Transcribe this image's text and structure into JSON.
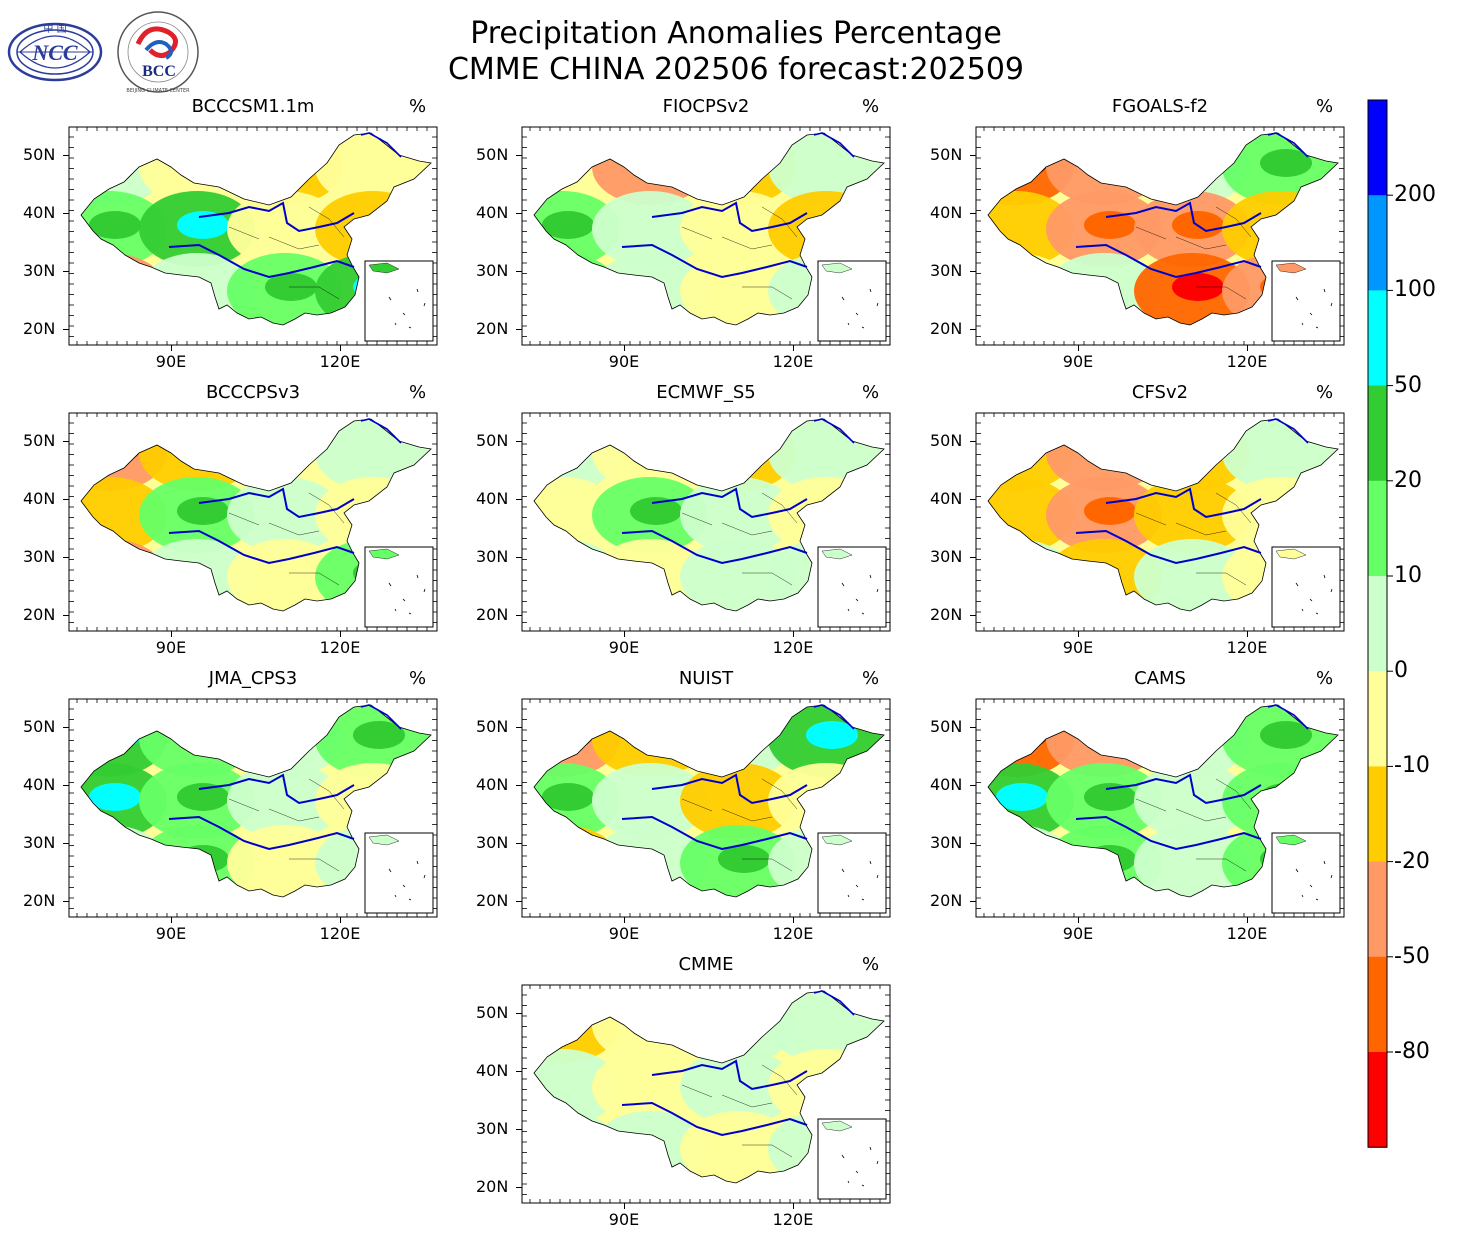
{
  "header": {
    "title_line1": "Precipitation Anomalies Percentage",
    "title_line2": "CMME CHINA 202506 forecast:202509",
    "logo_left_text": "NCC",
    "logo_left_top": "中 国",
    "logo_right_text": "BCC",
    "logo_right_ring": "BEIJING CLIMATE CENTER"
  },
  "unit": "%",
  "panels": [
    {
      "name": "BCCCSM1.1m",
      "pattern": [
        1,
        0,
        -1,
        0,
        2,
        3,
        0,
        -1,
        -2,
        1,
        2,
        3
      ]
    },
    {
      "name": "FIOCPSv2",
      "pattern": [
        0,
        -2,
        -1,
        1,
        2,
        1,
        0,
        -1,
        2,
        1,
        0,
        1
      ]
    },
    {
      "name": "FGOALS-f2",
      "pattern": [
        -3,
        -2,
        1,
        2,
        -1,
        -2,
        -2,
        -1,
        0,
        1,
        -3,
        -2
      ]
    },
    {
      "name": "BCCCPSv3",
      "pattern": [
        -2,
        -1,
        0,
        1,
        -1,
        2,
        1,
        0,
        -2,
        1,
        0,
        2
      ]
    },
    {
      "name": "ECMWF_S5",
      "pattern": [
        1,
        0,
        -1,
        1,
        0,
        2,
        1,
        0,
        1,
        0,
        1,
        1
      ]
    },
    {
      "name": "CFSv2",
      "pattern": [
        -1,
        -2,
        -1,
        1,
        -1,
        -2,
        -1,
        0,
        1,
        -1,
        1,
        0
      ]
    },
    {
      "name": "JMA_CPS3",
      "pattern": [
        3,
        2,
        1,
        2,
        3,
        2,
        1,
        0,
        1,
        2,
        0,
        1
      ]
    },
    {
      "name": "NUIST",
      "pattern": [
        -2,
        -1,
        1,
        3,
        2,
        1,
        -1,
        0,
        -1,
        1,
        2,
        1
      ]
    },
    {
      "name": "CAMS",
      "pattern": [
        -3,
        -2,
        1,
        2,
        3,
        2,
        1,
        2,
        1,
        2,
        1,
        2
      ]
    },
    {
      "name": "CMME",
      "pattern": [
        -1,
        0,
        1,
        1,
        1,
        0,
        1,
        0,
        1,
        1,
        0,
        1
      ]
    }
  ],
  "axes": {
    "y_ticks": [
      "50N",
      "40N",
      "30N",
      "20N"
    ],
    "x_ticks": [
      "90E",
      "120E"
    ]
  },
  "colorbar": {
    "labels": [
      "200",
      "100",
      "50",
      "20",
      "10",
      "0",
      "-10",
      "-20",
      "-50",
      "-80"
    ],
    "colors": [
      "#0000ff",
      "#0096ff",
      "#00ffff",
      "#33cc33",
      "#66ff66",
      "#ccffcc",
      "#ffff99",
      "#ffcc00",
      "#ff9966",
      "#ff6600",
      "#ff0000"
    ]
  }
}
